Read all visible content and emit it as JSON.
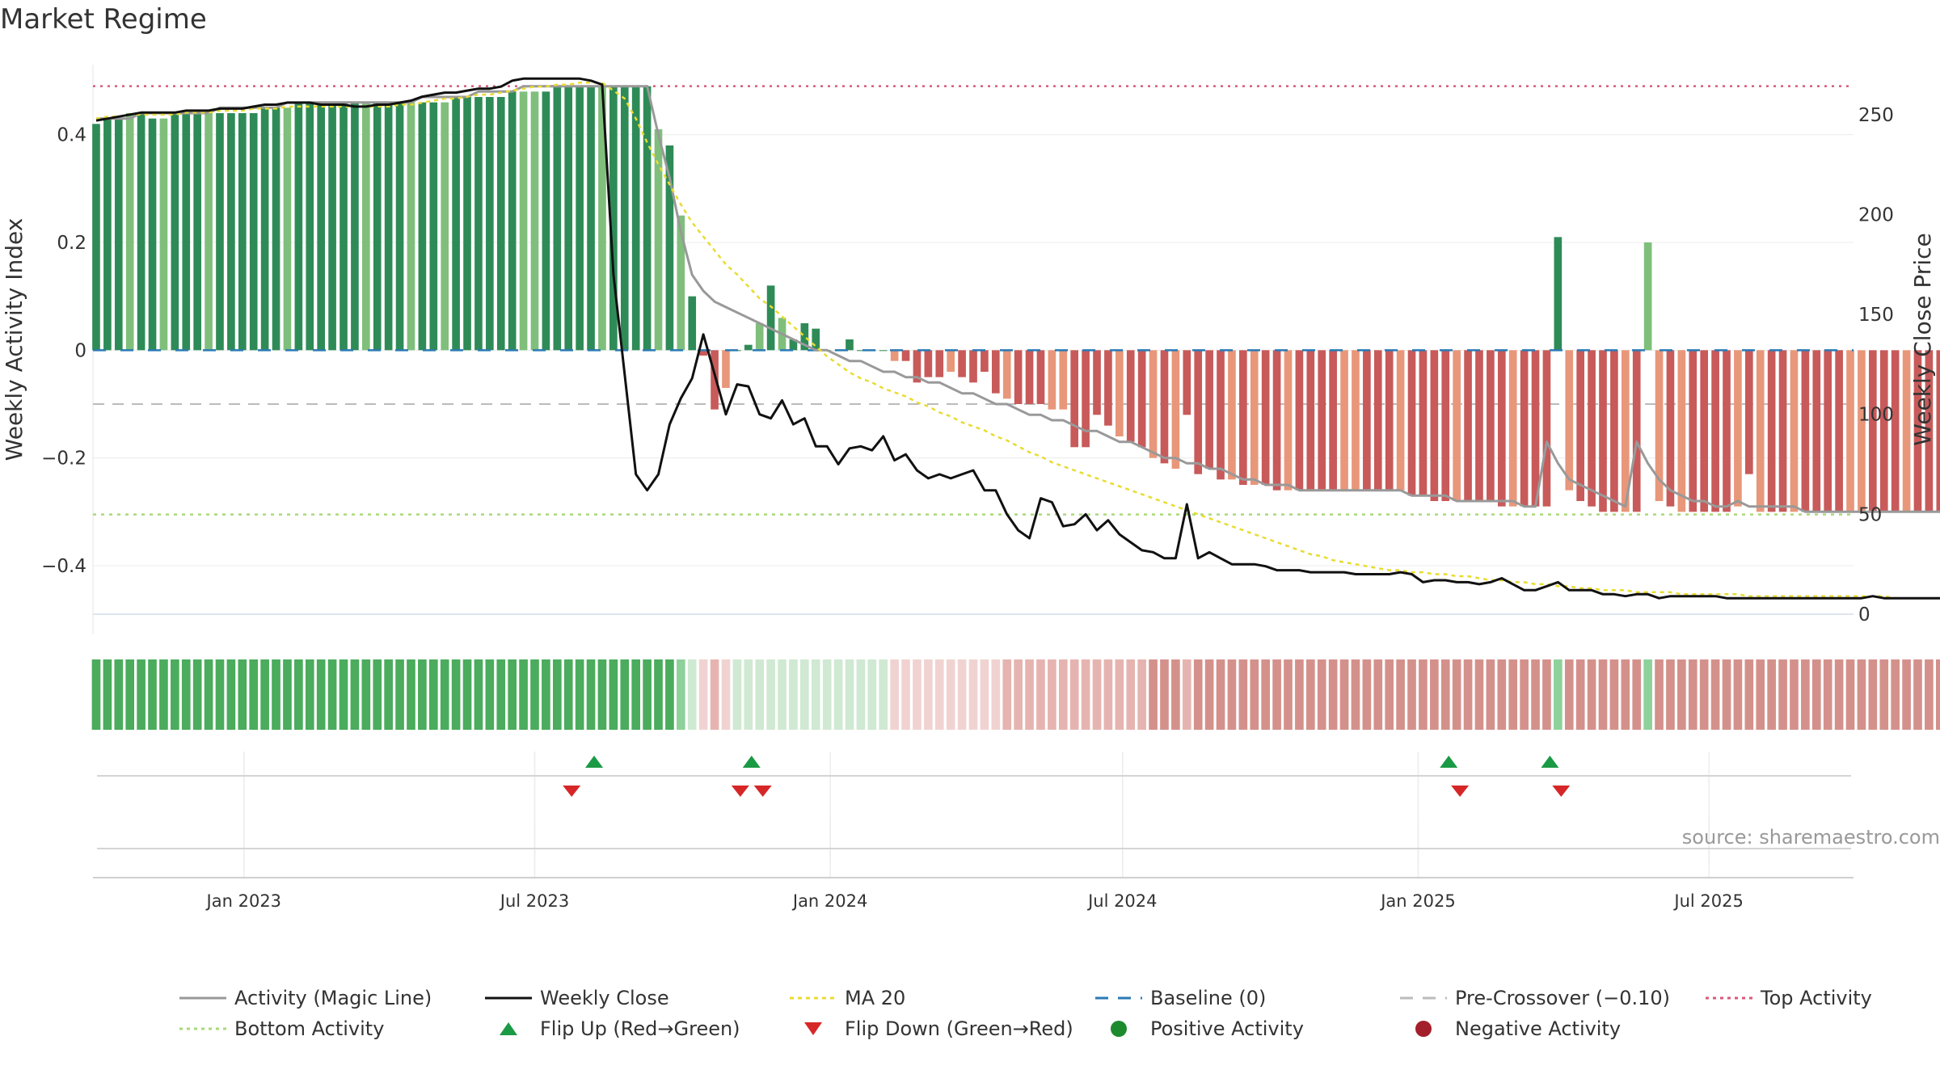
{
  "title": "Market Regime",
  "source": "source: sharemaestro.com",
  "colors": {
    "pos_dark": "#2e8b57",
    "pos_light": "#7fbf7b",
    "neg_dark": "#c85a5a",
    "neg_light": "#e8977a",
    "activity_line": "#999999",
    "close_line": "#111111",
    "ma_line": "#e8dc30",
    "baseline": "#2a7ab5",
    "pre_cross": "#bbbbbb",
    "top_line": "#d65b7a",
    "bottom_line": "#a9d979",
    "flip_up": "#1a9a45",
    "flip_down": "#d62728",
    "strip_pos_strong": "#4aac5c",
    "strip_pos_weak": "#d0e9d2",
    "strip_neg_strong": "#d4918b",
    "strip_neg_weak": "#f0d3d1"
  },
  "chart_data": {
    "type": "bar",
    "title": "Market Regime",
    "ylabel": "Weekly Activity Index",
    "y2label": "Weekly Close Price",
    "ylim": [
      -0.49,
      0.53
    ],
    "y2lim": [
      0,
      275
    ],
    "yticks": [
      "0.4",
      "0.2",
      "0",
      "−0.2",
      "−0.4"
    ],
    "y2ticks": [
      "250",
      "200",
      "150",
      "100",
      "50",
      "0"
    ],
    "xlim": [
      "2022-09-29",
      "2025-09-29"
    ],
    "xticks": [
      {
        "date": "2023-01-01",
        "label": "Jan 2023"
      },
      {
        "date": "2023-07-01",
        "label": "Jul 2023"
      },
      {
        "date": "2024-01-01",
        "label": "Jan 2024"
      },
      {
        "date": "2024-07-01",
        "label": "Jul 2024"
      },
      {
        "date": "2025-01-01",
        "label": "Jan 2025"
      },
      {
        "date": "2025-07-01",
        "label": "Jul 2025"
      }
    ],
    "start_date": "2022-10-01",
    "week_step_days": 7,
    "activity_index": [
      0.42,
      0.43,
      0.43,
      0.44,
      0.44,
      0.43,
      0.43,
      0.44,
      0.44,
      0.44,
      0.44,
      0.44,
      0.44,
      0.44,
      0.44,
      0.45,
      0.45,
      0.45,
      0.46,
      0.46,
      0.46,
      0.46,
      0.46,
      0.46,
      0.46,
      0.46,
      0.46,
      0.46,
      0.46,
      0.46,
      0.46,
      0.46,
      0.47,
      0.47,
      0.47,
      0.47,
      0.47,
      0.48,
      0.48,
      0.48,
      0.48,
      0.49,
      0.49,
      0.49,
      0.49,
      0.49,
      0.49,
      0.49,
      0.49,
      0.49,
      0.41,
      0.38,
      0.25,
      0.1,
      -0.01,
      -0.11,
      -0.07,
      0.0,
      0.01,
      0.05,
      0.12,
      0.06,
      0.02,
      0.05,
      0.04,
      0.0,
      0.0,
      0.02,
      0.0,
      0.0,
      0.0,
      -0.02,
      -0.02,
      -0.06,
      -0.05,
      -0.05,
      -0.04,
      -0.05,
      -0.06,
      -0.04,
      -0.08,
      -0.09,
      -0.1,
      -0.1,
      -0.1,
      -0.11,
      -0.11,
      -0.18,
      -0.18,
      -0.12,
      -0.14,
      -0.16,
      -0.17,
      -0.18,
      -0.2,
      -0.21,
      -0.22,
      -0.12,
      -0.23,
      -0.22,
      -0.24,
      -0.24,
      -0.25,
      -0.25,
      -0.25,
      -0.26,
      -0.26,
      -0.26,
      -0.26,
      -0.26,
      -0.26,
      -0.26,
      -0.26,
      -0.26,
      -0.26,
      -0.26,
      -0.26,
      -0.27,
      -0.27,
      -0.28,
      -0.28,
      -0.28,
      -0.28,
      -0.28,
      -0.28,
      -0.29,
      -0.29,
      -0.29,
      -0.29,
      -0.29,
      0.21,
      -0.26,
      -0.28,
      -0.29,
      -0.3,
      -0.3,
      -0.3,
      -0.3,
      0.2,
      -0.28,
      -0.29,
      -0.3,
      -0.3,
      -0.3,
      -0.3,
      -0.3,
      -0.29,
      -0.23,
      -0.3,
      -0.3,
      -0.3,
      -0.3,
      -0.3,
      -0.3,
      -0.3,
      -0.3,
      -0.3,
      -0.3,
      -0.3,
      -0.3,
      -0.3,
      -0.3,
      -0.3,
      -0.3,
      -0.3,
      -0.3,
      -0.3
    ],
    "weekly_close": [
      247,
      248,
      249,
      250,
      251,
      251,
      251,
      251,
      252,
      252,
      252,
      253,
      253,
      253,
      254,
      255,
      255,
      256,
      256,
      256,
      255,
      255,
      255,
      254,
      254,
      255,
      255,
      256,
      257,
      259,
      260,
      261,
      261,
      262,
      263,
      263,
      264,
      267,
      268,
      268,
      268,
      268,
      268,
      268,
      267,
      265,
      170,
      120,
      70,
      62,
      70,
      95,
      108,
      118,
      140,
      120,
      100,
      115,
      114,
      100,
      98,
      107,
      95,
      98,
      84,
      84,
      75,
      83,
      84,
      82,
      89,
      77,
      80,
      72,
      68,
      70,
      68,
      70,
      72,
      62,
      62,
      50,
      42,
      38,
      58,
      56,
      44,
      45,
      50,
      42,
      47,
      40,
      36,
      32,
      31,
      28,
      28,
      55,
      28,
      31,
      28,
      25,
      25,
      25,
      24,
      22,
      22,
      22,
      21,
      21,
      21,
      21,
      20,
      20,
      20,
      20,
      21,
      20,
      16,
      17,
      17,
      16,
      16,
      15,
      16,
      18,
      15,
      12,
      12,
      14,
      16,
      12,
      12,
      12,
      10,
      10,
      9,
      10,
      10,
      8,
      9,
      9,
      9,
      9,
      9,
      8,
      8,
      8,
      8,
      8,
      8,
      8,
      8,
      8,
      8,
      8,
      8,
      8,
      9,
      8,
      8,
      8,
      8,
      8,
      8,
      8,
      8,
      8,
      8,
      8,
      8,
      8,
      8,
      8,
      7,
      7,
      7,
      7,
      7,
      7,
      7,
      7,
      7,
      7,
      7,
      7,
      7,
      7,
      7,
      7
    ],
    "magic_line": [
      0.43,
      0.43,
      0.43,
      0.43,
      0.44,
      0.44,
      0.44,
      0.44,
      0.44,
      0.44,
      0.44,
      0.45,
      0.45,
      0.45,
      0.45,
      0.45,
      0.45,
      0.46,
      0.46,
      0.46,
      0.46,
      0.46,
      0.46,
      0.46,
      0.46,
      0.46,
      0.46,
      0.46,
      0.46,
      0.47,
      0.47,
      0.47,
      0.47,
      0.47,
      0.48,
      0.48,
      0.48,
      0.48,
      0.49,
      0.49,
      0.49,
      0.49,
      0.49,
      0.49,
      0.49,
      0.49,
      0.49,
      0.49,
      0.49,
      0.49,
      0.4,
      0.32,
      0.22,
      0.14,
      0.11,
      0.09,
      0.08,
      0.07,
      0.06,
      0.05,
      0.04,
      0.03,
      0.02,
      0.01,
      0.0,
      0.0,
      -0.01,
      -0.02,
      -0.02,
      -0.03,
      -0.04,
      -0.04,
      -0.05,
      -0.05,
      -0.06,
      -0.06,
      -0.07,
      -0.08,
      -0.08,
      -0.09,
      -0.1,
      -0.1,
      -0.11,
      -0.12,
      -0.12,
      -0.13,
      -0.13,
      -0.14,
      -0.15,
      -0.15,
      -0.16,
      -0.17,
      -0.17,
      -0.18,
      -0.19,
      -0.2,
      -0.2,
      -0.21,
      -0.21,
      -0.22,
      -0.22,
      -0.23,
      -0.24,
      -0.24,
      -0.25,
      -0.25,
      -0.25,
      -0.26,
      -0.26,
      -0.26,
      -0.26,
      -0.26,
      -0.26,
      -0.26,
      -0.26,
      -0.26,
      -0.26,
      -0.27,
      -0.27,
      -0.27,
      -0.27,
      -0.28,
      -0.28,
      -0.28,
      -0.28,
      -0.28,
      -0.28,
      -0.29,
      -0.29,
      -0.17,
      -0.21,
      -0.24,
      -0.25,
      -0.26,
      -0.27,
      -0.28,
      -0.29,
      -0.17,
      -0.21,
      -0.24,
      -0.26,
      -0.27,
      -0.28,
      -0.28,
      -0.29,
      -0.29,
      -0.28,
      -0.29,
      -0.29,
      -0.29,
      -0.29,
      -0.29,
      -0.3,
      -0.3,
      -0.3,
      -0.3,
      -0.3,
      -0.3,
      -0.3,
      -0.3,
      -0.3,
      -0.3,
      -0.3,
      -0.3,
      -0.3,
      -0.3,
      -0.3
    ],
    "ma20": [
      248,
      249,
      249,
      250,
      250,
      250,
      250,
      250,
      251,
      251,
      251,
      252,
      252,
      252,
      253,
      253,
      253,
      254,
      254,
      254,
      254,
      254,
      254,
      254,
      254,
      254,
      254,
      255,
      255,
      256,
      257,
      258,
      258,
      259,
      260,
      260,
      261,
      262,
      263,
      264,
      264,
      265,
      265,
      266,
      266,
      266,
      262,
      258,
      248,
      236,
      225,
      215,
      205,
      196,
      189,
      182,
      175,
      170,
      164,
      158,
      154,
      149,
      144,
      139,
      134,
      129,
      125,
      121,
      118,
      116,
      113,
      111,
      109,
      106,
      104,
      101,
      99,
      96,
      94,
      92,
      89,
      87,
      84,
      81,
      79,
      76,
      74,
      72,
      70,
      68,
      66,
      64,
      62,
      60,
      58,
      56,
      54,
      52,
      50,
      48,
      46,
      44,
      42,
      40,
      38,
      36,
      34,
      32,
      30,
      29,
      27,
      26,
      25,
      24,
      23,
      22,
      22,
      21,
      21,
      20,
      20,
      19,
      19,
      18,
      17,
      17,
      16,
      16,
      15,
      15,
      14,
      14,
      13,
      13,
      12,
      12,
      12,
      11,
      11,
      11,
      11,
      10,
      10,
      10,
      10,
      10,
      10,
      9,
      9,
      9,
      9,
      9,
      9,
      9,
      9,
      9,
      9,
      9,
      9,
      9,
      8,
      8,
      8,
      8,
      8,
      8,
      8,
      8,
      8,
      8,
      8,
      8,
      8,
      8,
      8,
      8,
      8,
      8,
      8,
      8,
      8,
      8,
      8,
      8,
      8,
      8,
      8,
      8,
      8
    ],
    "baseline": 0,
    "pre_crossover": -0.1,
    "top_activity": 0.49,
    "bottom_activity": -0.305,
    "flip_up_dates": [
      "2023-08-07",
      "2023-11-13",
      "2025-01-20",
      "2025-03-24"
    ],
    "flip_down_dates": [
      "2023-07-24",
      "2023-11-06",
      "2023-11-20",
      "2025-01-27",
      "2025-03-31"
    ],
    "legend": [
      {
        "key": "magic",
        "label": "Activity (Magic Line)"
      },
      {
        "key": "close",
        "label": "Weekly Close"
      },
      {
        "key": "ma",
        "label": "MA 20"
      },
      {
        "key": "baseline",
        "label": "Baseline (0)"
      },
      {
        "key": "precross",
        "label": "Pre-Crossover (−0.10)"
      },
      {
        "key": "top",
        "label": "Top Activity"
      },
      {
        "key": "bottom",
        "label": "Bottom Activity"
      },
      {
        "key": "flipup",
        "label": "Flip Up (Red→Green)"
      },
      {
        "key": "flipdown",
        "label": "Flip Down (Green→Red)"
      },
      {
        "key": "pos",
        "label": "Positive Activity"
      },
      {
        "key": "neg",
        "label": "Negative Activity"
      }
    ]
  }
}
